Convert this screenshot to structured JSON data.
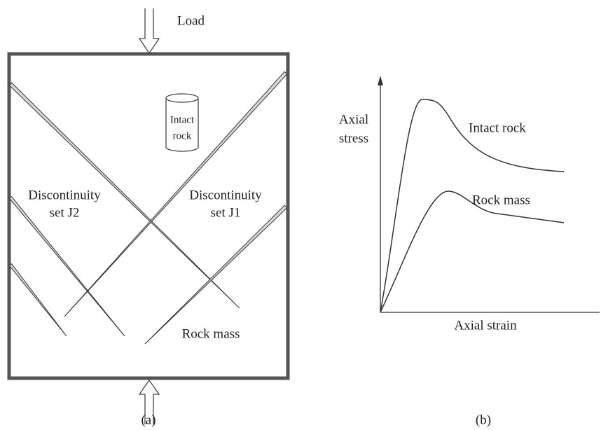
{
  "panel_a": {
    "load_label": "Load",
    "intact_rock": [
      "Intact",
      "rock"
    ],
    "set_j2": [
      "Discontinuity",
      "set J2"
    ],
    "set_j1": [
      "Discontinuity",
      "set J1"
    ],
    "rock_mass": "Rock mass",
    "caption": "(a)"
  },
  "panel_b": {
    "y_label": [
      "Axial",
      "stress"
    ],
    "x_label": "Axial strain",
    "curves": [
      "Intact rock",
      "Rock mass"
    ],
    "caption": "(b)"
  }
}
